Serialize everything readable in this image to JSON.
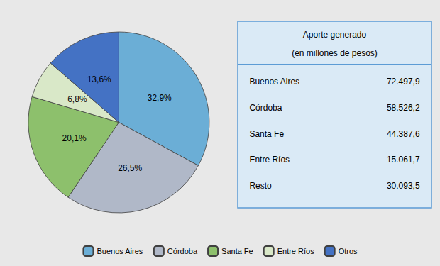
{
  "chart_data": {
    "type": "pie",
    "categories": [
      "Buenos Aires",
      "Córdoba",
      "Santa Fe",
      "Entre Ríos",
      "Otros"
    ],
    "values": [
      32.9,
      26.5,
      20.1,
      6.8,
      13.6
    ],
    "value_labels": [
      "32,9%",
      "26,5%",
      "20,1%",
      "6,8%",
      "13,6%"
    ],
    "colors": [
      "#6baed6",
      "#b0b8c8",
      "#8dc06c",
      "#d9e8c8",
      "#4472c4"
    ],
    "data_labels": true,
    "legend": "bottom",
    "table": {
      "header": [
        "Aporte generado",
        "(en millones de pesos)"
      ],
      "rows": [
        [
          "Buenos Aires",
          "72.497,9"
        ],
        [
          "Córdoba",
          "58.526,2"
        ],
        [
          "Santa Fe",
          "44.387,6"
        ],
        [
          "Entre Ríos",
          "15.061,7"
        ],
        [
          "Resto",
          "30.093,5"
        ]
      ]
    }
  }
}
